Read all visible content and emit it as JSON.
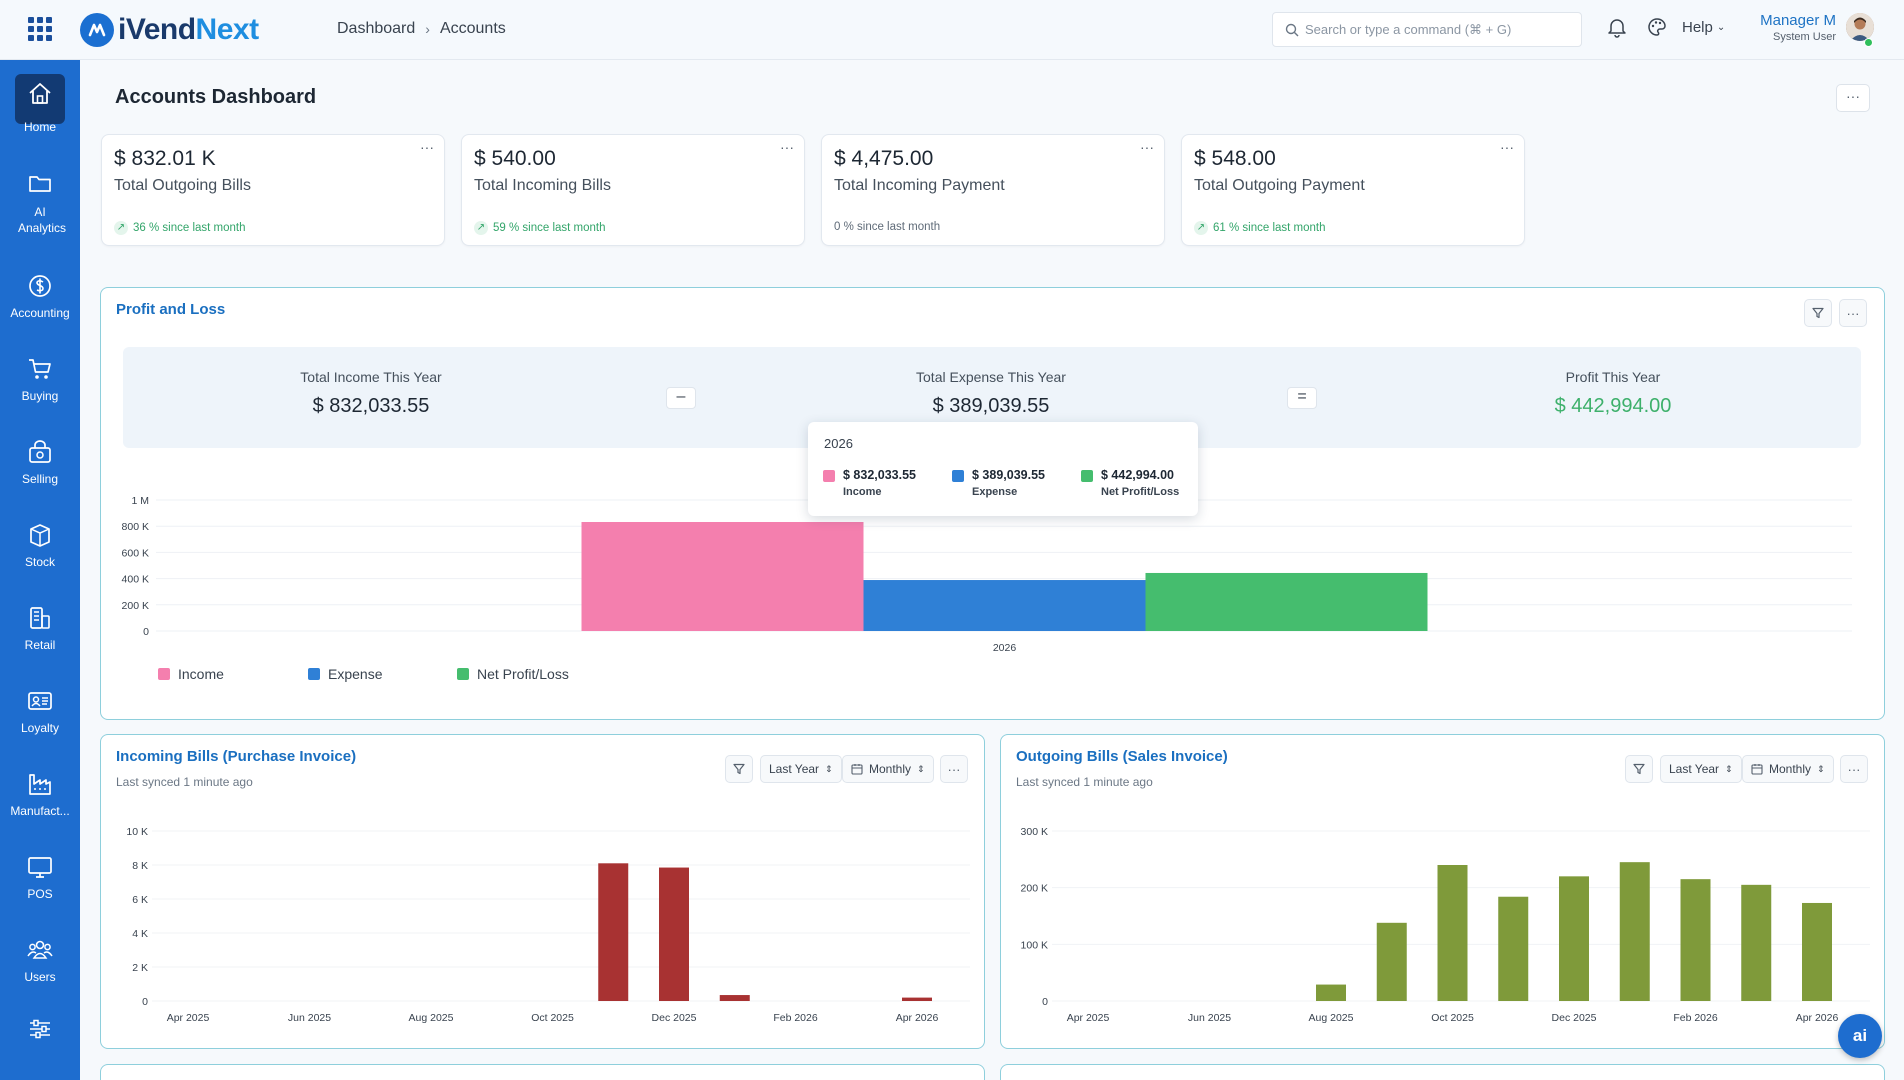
{
  "header": {
    "brand_part1": "iVend",
    "brand_part2": "Next",
    "breadcrumb": [
      "Dashboard",
      "Accounts"
    ],
    "search_placeholder": "Search or type a command (⌘ + G)",
    "help_label": "Help",
    "user_name": "Manager M",
    "user_role": "System User"
  },
  "sidebar": {
    "items": [
      {
        "label": "Home",
        "icon": "home-icon",
        "active": true
      },
      {
        "label": "AI Analytics",
        "icon": "folder-icon"
      },
      {
        "label": "Accounting",
        "icon": "dollar-icon"
      },
      {
        "label": "Buying",
        "icon": "cart-icon"
      },
      {
        "label": "Selling",
        "icon": "bag-icon"
      },
      {
        "label": "Stock",
        "icon": "box-icon"
      },
      {
        "label": "Retail",
        "icon": "register-icon"
      },
      {
        "label": "Loyalty",
        "icon": "id-card-icon"
      },
      {
        "label": "Manufact...",
        "icon": "factory-icon"
      },
      {
        "label": "POS",
        "icon": "monitor-icon"
      },
      {
        "label": "Users",
        "icon": "users-icon"
      },
      {
        "label": "",
        "icon": "sliders-icon"
      }
    ]
  },
  "page": {
    "title": "Accounts Dashboard",
    "more": "···"
  },
  "cards": [
    {
      "value": "$ 832.01 K",
      "label": "Total Outgoing Bills",
      "change": "36 % since last month",
      "trend": "up"
    },
    {
      "value": "$ 540.00",
      "label": "Total Incoming Bills",
      "change": "59 % since last month",
      "trend": "up"
    },
    {
      "value": "$ 4,475.00",
      "label": "Total Incoming Payment",
      "change": "0 % since last month",
      "trend": "flat"
    },
    {
      "value": "$ 548.00",
      "label": "Total Outgoing Payment",
      "change": "61 % since last month",
      "trend": "up"
    }
  ],
  "profit_loss": {
    "title": "Profit and Loss",
    "income_label": "Total Income This Year",
    "income_value": "$ 832,033.55",
    "expense_label": "Total Expense This Year",
    "expense_value": "$ 389,039.55",
    "profit_label": "Profit This Year",
    "profit_value": "$ 442,994.00",
    "op_minus": "–",
    "op_equals": "=",
    "tooltip": {
      "year": "2026",
      "items": [
        {
          "value": "$ 832,033.55",
          "name": "Income"
        },
        {
          "value": "$ 389,039.55",
          "name": "Expense"
        },
        {
          "value": "$ 442,994.00",
          "name": "Net Profit/Loss"
        }
      ]
    },
    "colors": {
      "income": "#f47fae",
      "expense": "#2f80d6",
      "net": "#45bd6e"
    }
  },
  "incoming_panel": {
    "title": "Incoming Bills (Purchase Invoice)",
    "synced": "Last synced 1 minute ago",
    "period": "Last Year",
    "interval": "Monthly"
  },
  "outgoing_panel": {
    "title": "Outgoing Bills (Sales Invoice)",
    "synced": "Last synced 1 minute ago",
    "period": "Last Year",
    "interval": "Monthly"
  },
  "fab_label": "ai",
  "chart_data": [
    {
      "type": "bar",
      "categories": [
        "2026"
      ],
      "series": [
        {
          "name": "Income",
          "values": [
            832033.55
          ]
        },
        {
          "name": "Expense",
          "values": [
            389039.55
          ]
        },
        {
          "name": "Net Profit/Loss",
          "values": [
            442994.0
          ]
        }
      ],
      "yticks": [
        "0",
        "200 K",
        "400 K",
        "600 K",
        "800 K",
        "1 M"
      ],
      "ylim": [
        0,
        1000000
      ],
      "legend": "bottom-left",
      "colors": [
        "#f47fae",
        "#2f80d6",
        "#45bd6e"
      ]
    },
    {
      "type": "bar",
      "x": [
        "Apr 2025",
        "May 2025",
        "Jun 2025",
        "Jul 2025",
        "Aug 2025",
        "Sep 2025",
        "Oct 2025",
        "Nov 2025",
        "Dec 2025",
        "Jan 2026",
        "Feb 2026",
        "Mar 2026",
        "Apr 2026"
      ],
      "xticks": [
        "Apr 2025",
        "Jun 2025",
        "Aug 2025",
        "Oct 2025",
        "Dec 2025",
        "Feb 2026",
        "Apr 2026"
      ],
      "values": [
        0,
        0,
        0,
        0,
        0,
        0,
        0,
        8100,
        7850,
        350,
        0,
        0,
        200
      ],
      "yticks": [
        "0",
        "2 K",
        "4 K",
        "6 K",
        "8 K",
        "10 K"
      ],
      "ylim": [
        0,
        10000
      ],
      "color": "#a83232"
    },
    {
      "type": "bar",
      "x": [
        "Apr 2025",
        "May 2025",
        "Jun 2025",
        "Jul 2025",
        "Aug 2025",
        "Sep 2025",
        "Oct 2025",
        "Nov 2025",
        "Dec 2025",
        "Jan 2026",
        "Feb 2026",
        "Mar 2026",
        "Apr 2026"
      ],
      "xticks": [
        "Apr 2025",
        "Jun 2025",
        "Aug 2025",
        "Oct 2025",
        "Dec 2025",
        "Feb 2026",
        "Apr 2026"
      ],
      "values": [
        0,
        0,
        0,
        0,
        29000,
        138000,
        240000,
        184000,
        220000,
        245000,
        215000,
        205000,
        173000
      ],
      "yticks": [
        "0",
        "100 K",
        "200 K",
        "300 K"
      ],
      "ylim": [
        0,
        300000
      ],
      "color": "#7f9a3a"
    }
  ]
}
